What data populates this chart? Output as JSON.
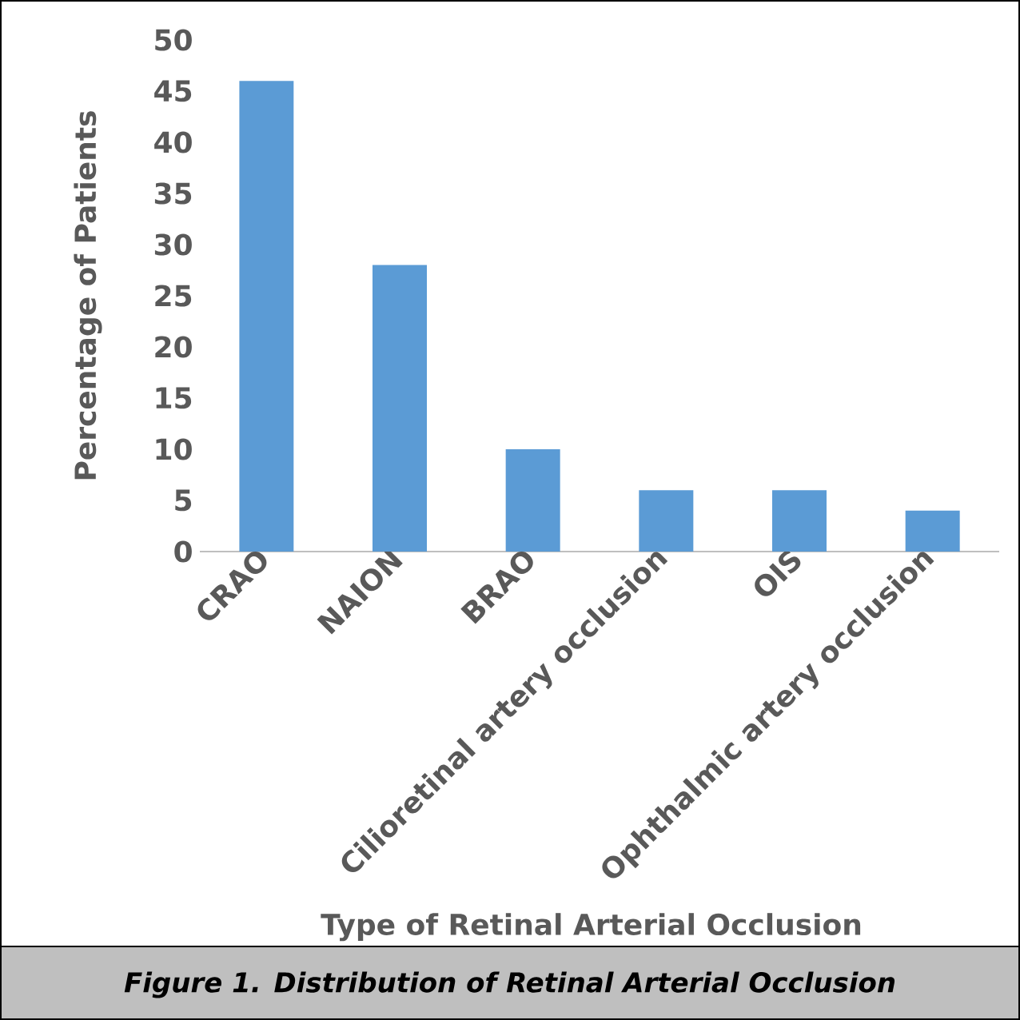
{
  "chart_data": {
    "type": "bar",
    "categories": [
      "CRAO",
      "NAION",
      "BRAO",
      "Cilioretinal artery occlusion",
      "OIS",
      "Ophthalmic artery occlusion"
    ],
    "values": [
      46,
      28,
      10,
      6,
      6,
      4
    ],
    "color": "#5b9bd5",
    "xlabel": "Type of Retinal Arterial Occlusion",
    "ylabel": "Percentage of Patients",
    "ylim": [
      0,
      50
    ],
    "yticks": [
      0,
      5,
      10,
      15,
      20,
      25,
      30,
      35,
      40,
      45,
      50
    ],
    "annotations": [
      "Figure 1. Distribution of Retinal Arterial Occlusion"
    ]
  }
}
